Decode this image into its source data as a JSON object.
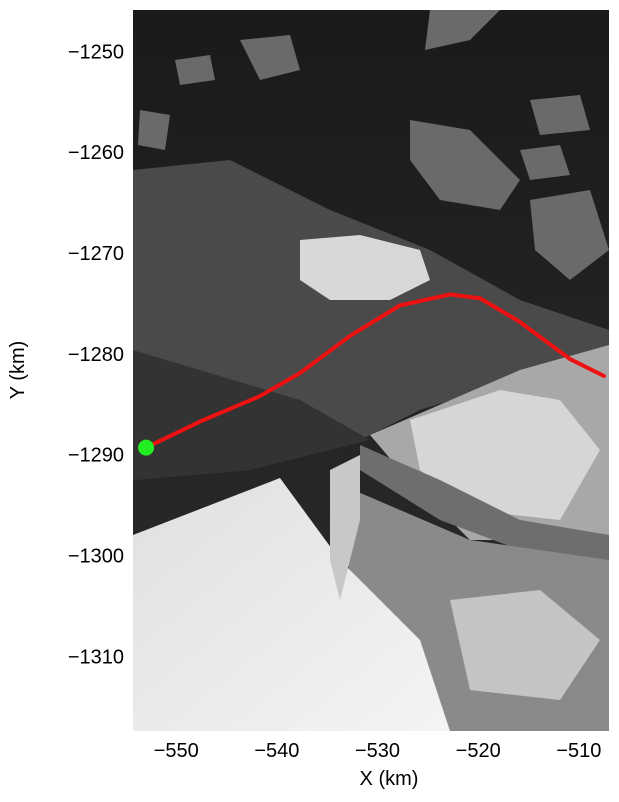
{
  "chart_data": {
    "type": "line",
    "xlabel": "X (km)",
    "ylabel": "Y (km)",
    "xlim": [
      -554.3,
      -507.0
    ],
    "ylim": [
      -1317.4,
      -1245.9
    ],
    "xticks": [
      {
        "value": -550,
        "label": "−550"
      },
      {
        "value": -540,
        "label": "−540"
      },
      {
        "value": -530,
        "label": "−530"
      },
      {
        "value": -520,
        "label": "−520"
      },
      {
        "value": -510,
        "label": "−510"
      }
    ],
    "yticks": [
      {
        "value": -1250,
        "label": "−1250"
      },
      {
        "value": -1260,
        "label": "−1260"
      },
      {
        "value": -1270,
        "label": "−1270"
      },
      {
        "value": -1280,
        "label": "−1280"
      },
      {
        "value": -1290,
        "label": "−1290"
      },
      {
        "value": -1300,
        "label": "−1300"
      },
      {
        "value": -1310,
        "label": "−1310"
      }
    ],
    "series": [
      {
        "color": "#ee1111",
        "x": [
          -553.0,
          -547.6,
          -541.7,
          -537.7,
          -532.7,
          -527.8,
          -522.8,
          -519.8,
          -515.9,
          -510.9,
          -507.5
        ],
        "values": [
          -1289.3,
          -1286.7,
          -1284.2,
          -1281.9,
          -1278.2,
          -1275.2,
          -1274.1,
          -1274.5,
          -1276.8,
          -1280.5,
          -1282.2
        ]
      }
    ],
    "start_point": {
      "color": "#22ee22",
      "x": -553.0,
      "y": -1289.3
    }
  }
}
